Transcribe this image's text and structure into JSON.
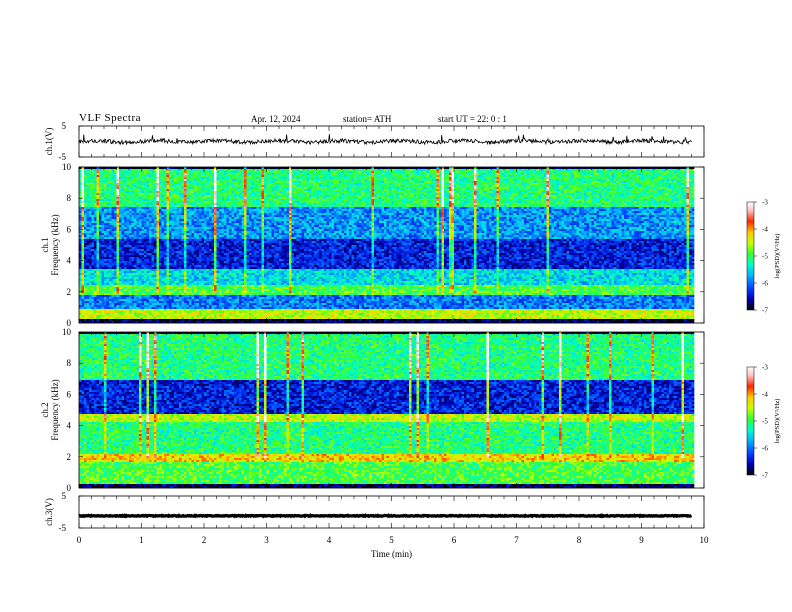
{
  "header": {
    "title": "VLF  Spectra",
    "date": "Apr. 12, 2024",
    "station": "station= ATH",
    "start": "start  UT  =    22: 0   : 1"
  },
  "colors": {
    "background": "#ffffff",
    "axis": "#000000",
    "colormap": [
      "#000000",
      "#0000b4",
      "#0040ff",
      "#00b4ff",
      "#00ffc8",
      "#32ff32",
      "#c8ff00",
      "#ffc800",
      "#ff2800",
      "#ffbebe",
      "#ffffff"
    ]
  },
  "chart_data": [
    {
      "type": "line",
      "panel": "ch1-waveform",
      "ylabel": "ch.1(V)",
      "ylim": [
        -5,
        5
      ],
      "ytick_labels": [
        "5",
        "-5"
      ],
      "x_range_min": [
        0,
        9.8
      ],
      "trace_level": 0,
      "grid": false
    },
    {
      "type": "heatmap",
      "panel": "ch1-spectrogram",
      "ylabel": "ch.1",
      "ylabel2": "Frequency  (kHz)",
      "ylim": [
        0,
        10
      ],
      "ytick_labels": [
        "0",
        "2",
        "4",
        "6",
        "8",
        "10"
      ],
      "colorbar_label": "log(PSD)(V²/Hz)",
      "colorbar_range": [
        -7,
        -3
      ],
      "colorbar_tick_labels": [
        "-3",
        "-4",
        "-5",
        "-6",
        "-7"
      ],
      "bands_khz": [
        {
          "from": 0.0,
          "to": 0.3,
          "level": -6.8
        },
        {
          "from": 0.3,
          "to": 0.9,
          "level": -4.6
        },
        {
          "from": 0.9,
          "to": 1.9,
          "level": -6.0
        },
        {
          "from": 1.9,
          "to": 2.5,
          "level": -5.0
        },
        {
          "from": 2.5,
          "to": 3.5,
          "level": -5.6
        },
        {
          "from": 3.5,
          "to": 5.5,
          "level": -6.4
        },
        {
          "from": 5.5,
          "to": 7.5,
          "level": -5.9
        },
        {
          "from": 7.5,
          "to": 10.0,
          "level": -5.2
        }
      ]
    },
    {
      "type": "heatmap",
      "panel": "ch2-spectrogram",
      "ylabel": "ch.2",
      "ylabel2": "Frequency  (kHz)",
      "ylim": [
        0,
        10
      ],
      "ytick_labels": [
        "0",
        "2",
        "4",
        "6",
        "8",
        "10"
      ],
      "colorbar_label": "log(PSD)(V²/Hz)",
      "colorbar_range": [
        -7,
        -3
      ],
      "colorbar_tick_labels": [
        "-3",
        "-4",
        "-5",
        "-6",
        "-7"
      ],
      "bands_khz": [
        {
          "from": 0.0,
          "to": 0.3,
          "level": -6.8
        },
        {
          "from": 0.3,
          "to": 1.7,
          "level": -5.0
        },
        {
          "from": 1.7,
          "to": 2.3,
          "level": -4.3
        },
        {
          "from": 2.3,
          "to": 4.3,
          "level": -5.2
        },
        {
          "from": 4.3,
          "to": 4.8,
          "level": -4.6
        },
        {
          "from": 4.8,
          "to": 7.0,
          "level": -6.4
        },
        {
          "from": 7.0,
          "to": 10.0,
          "level": -5.2
        }
      ]
    },
    {
      "type": "line",
      "panel": "ch3-waveform",
      "ylabel": "ch.3(V)",
      "ylim": [
        -5,
        5
      ],
      "ytick_labels": [
        "5",
        "-5"
      ],
      "x_range_min": [
        0,
        9.8
      ],
      "trace_level": -1.2,
      "grid": false
    }
  ],
  "xaxis": {
    "xlabel": "Time  (min)",
    "xlim": [
      0,
      10
    ],
    "tick_labels": [
      "0",
      "1",
      "2",
      "3",
      "4",
      "5",
      "6",
      "7",
      "8",
      "9",
      "10"
    ]
  }
}
